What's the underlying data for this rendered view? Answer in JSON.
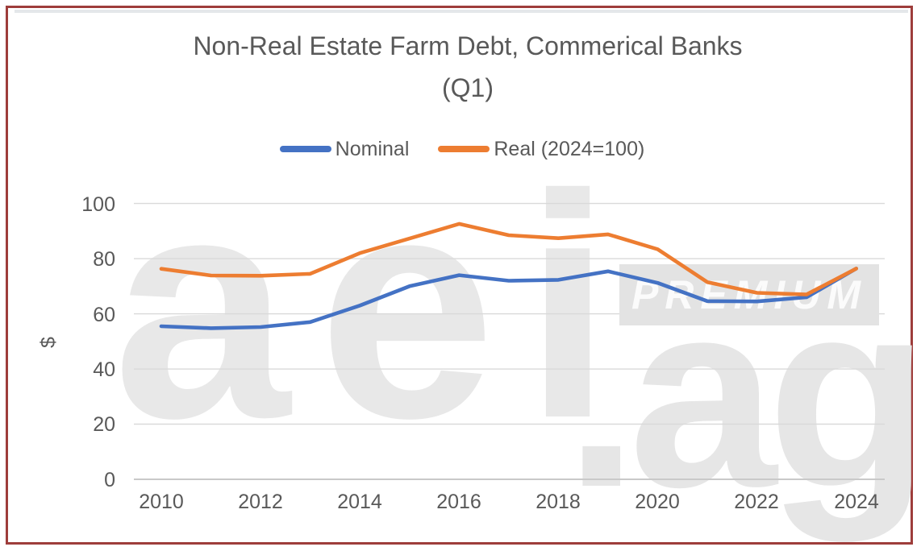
{
  "frame": {
    "border_color": "#9e3d3b"
  },
  "chart_data": {
    "type": "line",
    "title_line1": "Non-Real Estate Farm Debt, Commerical Banks",
    "title_line2": "(Q1)",
    "ylabel": "$",
    "x": [
      2010,
      2011,
      2012,
      2013,
      2014,
      2015,
      2016,
      2017,
      2018,
      2019,
      2020,
      2021,
      2022,
      2023,
      2024
    ],
    "series": [
      {
        "name": "Nominal",
        "color": "#4472C4",
        "values": [
          55.5,
          54.8,
          55.2,
          57.0,
          63.0,
          70.0,
          74.0,
          72.0,
          72.3,
          75.4,
          71.2,
          64.6,
          64.5,
          66.0,
          76.4
        ]
      },
      {
        "name": "Real (2024=100)",
        "color": "#ED7D31",
        "values": [
          76.3,
          73.9,
          73.8,
          74.5,
          82.0,
          87.3,
          92.6,
          88.5,
          87.4,
          88.8,
          83.4,
          71.5,
          67.6,
          67.0,
          76.4
        ]
      }
    ],
    "ylim": [
      0,
      100
    ],
    "y_tick_labels": [
      "100",
      "80",
      "60",
      "40",
      "20",
      "0"
    ],
    "x_tick_labels": [
      "2010",
      "2012",
      "2014",
      "2016",
      "2018",
      "2020",
      "2022",
      "2024"
    ],
    "grid": true,
    "gridline_color": "#d9d9d9",
    "legend_position": "top-center"
  },
  "watermark": {
    "brand": "aei",
    "brand_suffix": ".ag",
    "premium": "PREMIUM"
  }
}
